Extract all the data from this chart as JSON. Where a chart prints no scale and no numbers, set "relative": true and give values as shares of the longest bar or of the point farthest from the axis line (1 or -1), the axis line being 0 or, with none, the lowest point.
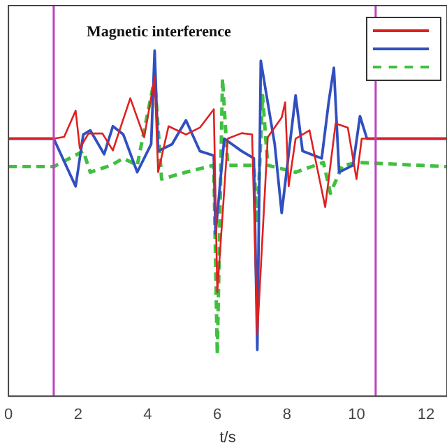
{
  "chart_data": {
    "type": "line",
    "relative": true,
    "xlabel": "t/s",
    "annotations": [
      "Magnetic interference"
    ],
    "xlim": [
      0,
      12.6
    ],
    "xticks": [
      0,
      2,
      4,
      6,
      8,
      10,
      12
    ],
    "grid": false,
    "legend": false,
    "marker": "none",
    "ref_lines": [
      {
        "axis": "x",
        "value": 1.3,
        "color": "#c040c0"
      },
      {
        "axis": "x",
        "value": 10.55,
        "color": "#c040c0"
      }
    ],
    "series": [
      {
        "color": "#e02020",
        "line_style": "solid",
        "x": [
          0,
          1.3,
          1.6,
          1.93,
          2.05,
          2.3,
          2.7,
          3.0,
          3.5,
          3.9,
          4.2,
          4.3,
          4.6,
          5.1,
          5.5,
          5.9,
          6.0,
          6.3,
          6.7,
          7.0,
          7.15,
          7.45,
          7.85,
          7.95,
          8.05,
          8.25,
          8.65,
          9.1,
          9.4,
          9.75,
          10.0,
          10.15,
          10.4,
          12.6
        ],
        "values": [
          0.745,
          0.745,
          0.75,
          0.826,
          0.717,
          0.76,
          0.76,
          0.711,
          0.862,
          0.749,
          0.923,
          0.648,
          0.781,
          0.757,
          0.777,
          0.83,
          0.3,
          0.745,
          0.761,
          0.757,
          0.18,
          0.749,
          0.806,
          0.85,
          0.607,
          0.745,
          0.769,
          0.547,
          0.789,
          0.777,
          0.628,
          0.745,
          0.745,
          0.745
        ]
      },
      {
        "color": "#3050c0",
        "line_style": "solid",
        "x": [
          0,
          1.3,
          1.93,
          2.15,
          2.35,
          2.75,
          3.0,
          3.3,
          3.7,
          4.1,
          4.2,
          4.3,
          4.7,
          5.1,
          5.5,
          5.9,
          5.95,
          6.2,
          6.7,
          7.05,
          7.15,
          7.25,
          7.65,
          7.85,
          8.25,
          8.45,
          9.0,
          9.2,
          9.35,
          9.5,
          9.9,
          10.1,
          10.3,
          12.6
        ],
        "values": [
          0.745,
          0.745,
          0.607,
          0.757,
          0.769,
          0.7,
          0.781,
          0.757,
          0.648,
          0.729,
          1.0,
          0.709,
          0.729,
          0.798,
          0.709,
          0.696,
          0.47,
          0.745,
          0.709,
          0.688,
          0.134,
          0.97,
          0.729,
          0.53,
          0.87,
          0.709,
          0.688,
          0.85,
          0.95,
          0.648,
          0.668,
          0.81,
          0.745,
          0.745
        ]
      },
      {
        "color": "#40c040",
        "line_style": "dashed",
        "x": [
          0,
          1.3,
          2.15,
          2.35,
          2.95,
          3.3,
          3.7,
          4.2,
          4.4,
          5.1,
          5.9,
          6.0,
          6.15,
          6.3,
          7.05,
          7.15,
          7.3,
          7.45,
          8.25,
          9.05,
          9.25,
          9.6,
          10.1,
          12.6
        ],
        "values": [
          0.664,
          0.664,
          0.709,
          0.648,
          0.668,
          0.688,
          0.668,
          0.919,
          0.628,
          0.648,
          0.668,
          0.12,
          0.919,
          0.668,
          0.668,
          0.5,
          0.87,
          0.668,
          0.648,
          0.676,
          0.587,
          0.668,
          0.676,
          0.664
        ]
      }
    ]
  }
}
